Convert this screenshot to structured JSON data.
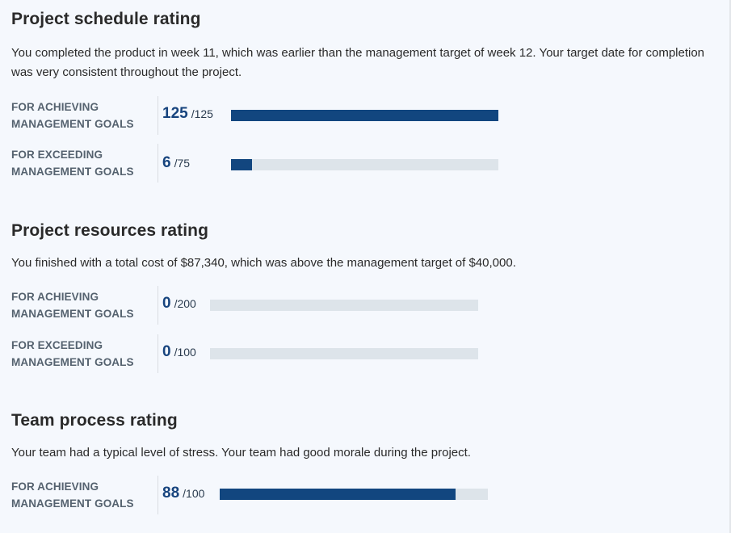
{
  "schedule": {
    "title": "Project schedule rating",
    "description": "You completed the product in week 11, which was earlier than the management target of week 12. Your target date for completion was very consistent throughout the project.",
    "rows": [
      {
        "label_line1": "FOR ACHIEVING",
        "label_line2": "MANAGEMENT GOALS",
        "value": "125",
        "max": "/125",
        "fraction": 1.0
      },
      {
        "label_line1": "FOR EXCEEDING",
        "label_line2": "MANAGEMENT GOALS",
        "value": "6",
        "max": "/75",
        "fraction": 0.08
      }
    ]
  },
  "resources": {
    "title": "Project resources rating",
    "description": "You finished with a total cost of $87,340, which was above the management target of $40,000.",
    "rows": [
      {
        "label_line1": "FOR ACHIEVING",
        "label_line2": "MANAGEMENT GOALS",
        "value": "0",
        "max": "/200",
        "fraction": 0
      },
      {
        "label_line1": "FOR EXCEEDING",
        "label_line2": "MANAGEMENT GOALS",
        "value": "0",
        "max": "/100",
        "fraction": 0
      }
    ]
  },
  "team": {
    "title": "Team process rating",
    "description": "Your team had a typical level of stress. Your team had good morale during the project.",
    "rows": [
      {
        "label_line1": "FOR ACHIEVING",
        "label_line2": "MANAGEMENT GOALS",
        "value": "88",
        "max": "/100",
        "fraction": 0.88
      }
    ]
  },
  "colors": {
    "bar_fill": "#12467f",
    "bar_track": "#dde4ea",
    "score_text": "#17447e"
  }
}
